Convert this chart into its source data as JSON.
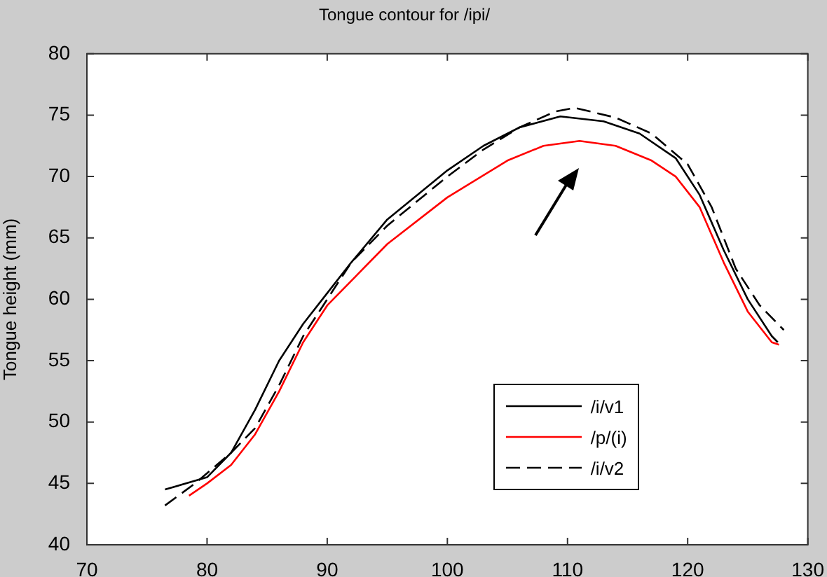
{
  "chart_data": {
    "type": "line",
    "title": "Tongue contour for /ipi/",
    "ylabel": "Tongue height (mm)",
    "xlim": [
      70,
      130
    ],
    "xticks": [
      70,
      80,
      90,
      100,
      110,
      120,
      130
    ],
    "ylim": [
      40,
      80
    ],
    "yticks": [
      40,
      45,
      50,
      55,
      60,
      65,
      70,
      75,
      80
    ],
    "grid": false,
    "legend": "bottom right",
    "marker": "none",
    "series": [
      {
        "name": "/i/v1",
        "color": "#000000",
        "line_style": "solid",
        "x": [
          76.5,
          80,
          82,
          84,
          86,
          88,
          90,
          92,
          95,
          100,
          103,
          106,
          109.4,
          113,
          116,
          119,
          121,
          123,
          125,
          127,
          127.5
        ],
        "values": [
          44.5,
          45.5,
          47.5,
          51,
          55,
          58,
          60.5,
          63,
          66.5,
          70.5,
          72.5,
          74,
          74.9,
          74.5,
          73.5,
          71.5,
          68.5,
          64,
          60,
          57,
          56.5
        ]
      },
      {
        "name": "/p/(i)",
        "color": "#ff0000",
        "line_style": "solid",
        "x": [
          78.5,
          80,
          82,
          84,
          86,
          88,
          90,
          92,
          95,
          100,
          105,
          108,
          111,
          114,
          117,
          119,
          121,
          123,
          125,
          127,
          127.6
        ],
        "values": [
          44,
          45,
          46.5,
          49,
          52.5,
          56.5,
          59.5,
          61.5,
          64.5,
          68.3,
          71.3,
          72.5,
          72.9,
          72.5,
          71.3,
          70,
          67.5,
          63,
          59,
          56.5,
          56.3
        ]
      },
      {
        "name": "/i/v2",
        "color": "#000000",
        "line_style": "dashed",
        "x": [
          76.5,
          79,
          82,
          84,
          86,
          88,
          90,
          92,
          95,
          100,
          103,
          106,
          109,
          110.6,
          114,
          117,
          120,
          122,
          124,
          126,
          128
        ],
        "values": [
          43.2,
          45,
          47.5,
          49.5,
          53,
          57,
          60,
          63,
          66,
          70,
          72.2,
          74,
          75.3,
          75.6,
          74.8,
          73.5,
          71,
          67.5,
          62.5,
          59.5,
          57.5
        ]
      }
    ]
  }
}
